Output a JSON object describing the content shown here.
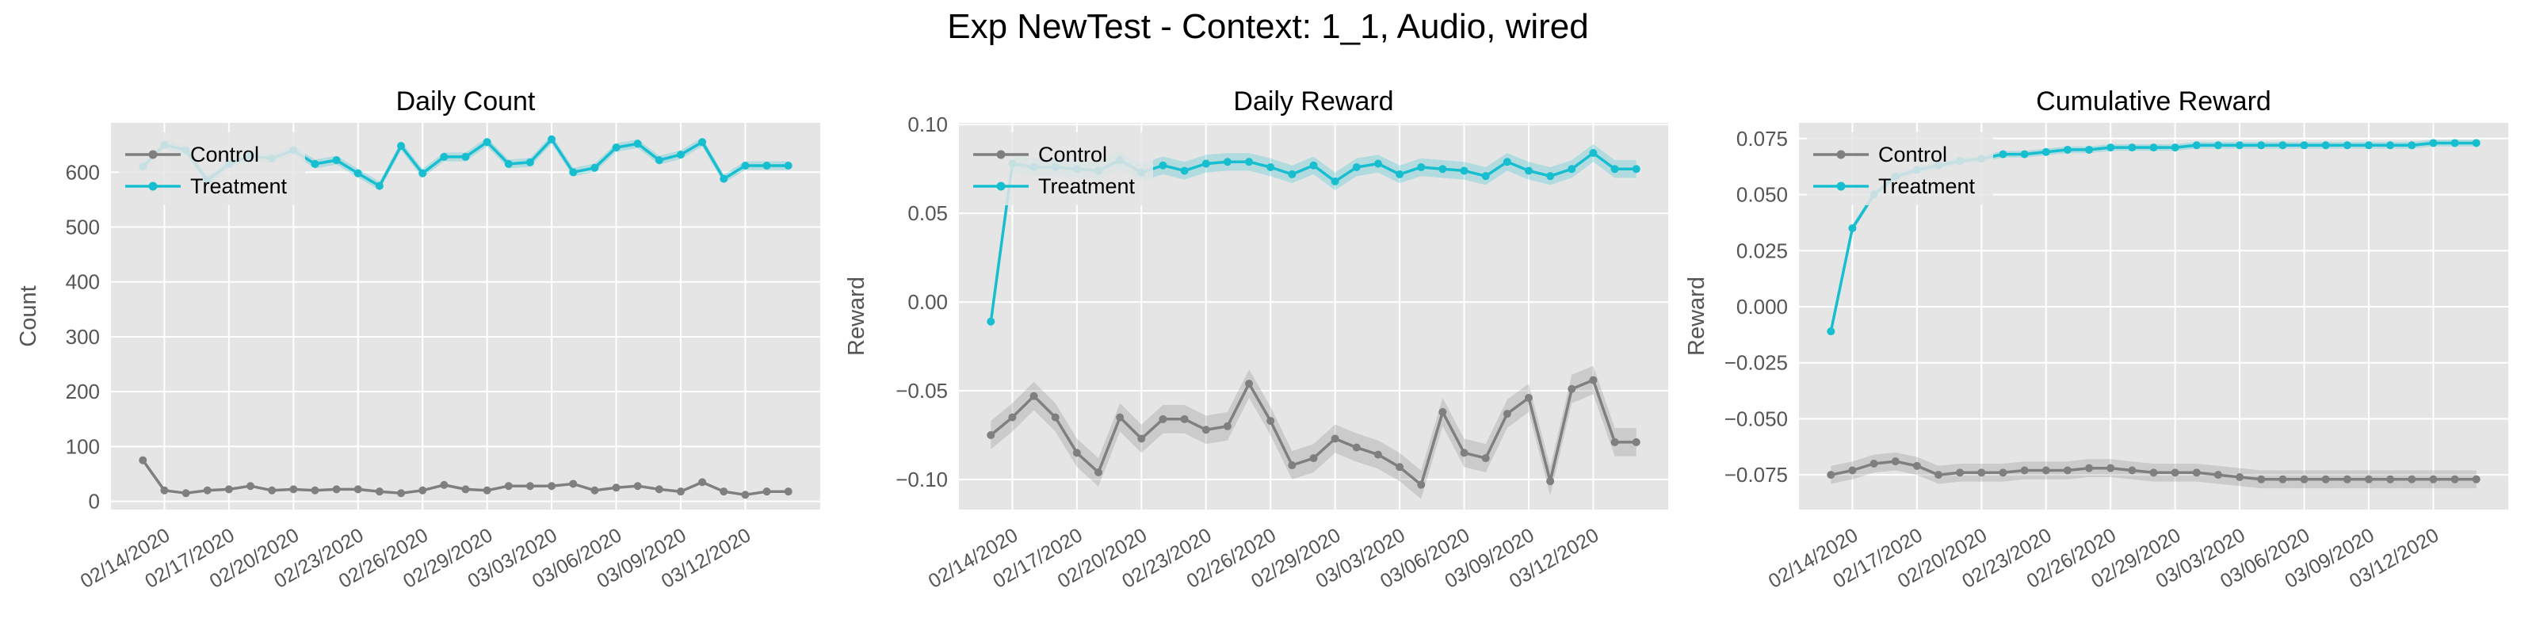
{
  "figure": {
    "suptitle": "Exp NewTest - Context: 1_1, Audio, wired"
  },
  "colors": {
    "control": "#7f7f7f",
    "treatment": "#17becf",
    "panel_bg": "#e5e5e5",
    "grid": "#ffffff"
  },
  "chart_data": [
    {
      "type": "line",
      "title": "Daily Count",
      "xlabel": "",
      "ylabel": "Count",
      "ylim": [
        -15,
        690
      ],
      "yticks": [
        0,
        100,
        200,
        300,
        400,
        500,
        600
      ],
      "ytick_labels": [
        "0",
        "100",
        "200",
        "300",
        "400",
        "500",
        "600"
      ],
      "x": [
        "02/13/2020",
        "02/14/2020",
        "02/15/2020",
        "02/16/2020",
        "02/17/2020",
        "02/18/2020",
        "02/19/2020",
        "02/20/2020",
        "02/21/2020",
        "02/22/2020",
        "02/23/2020",
        "02/24/2020",
        "02/25/2020",
        "02/26/2020",
        "02/27/2020",
        "02/28/2020",
        "02/29/2020",
        "03/01/2020",
        "03/02/2020",
        "03/03/2020",
        "03/04/2020",
        "03/05/2020",
        "03/06/2020",
        "03/07/2020",
        "03/08/2020",
        "03/09/2020",
        "03/10/2020",
        "03/11/2020",
        "03/12/2020",
        "03/13/2020",
        "03/14/2020"
      ],
      "xticks": [
        "02/14/2020",
        "02/17/2020",
        "02/20/2020",
        "02/23/2020",
        "02/26/2020",
        "02/29/2020",
        "03/03/2020",
        "03/06/2020",
        "03/09/2020",
        "03/12/2020"
      ],
      "legend": {
        "placement": "upper-left"
      },
      "series": [
        {
          "name": "Control",
          "values": [
            75,
            20,
            15,
            20,
            22,
            28,
            20,
            22,
            20,
            22,
            22,
            18,
            15,
            20,
            30,
            22,
            20,
            28,
            28,
            28,
            32,
            20,
            25,
            28,
            22,
            18,
            35,
            18,
            12,
            18,
            18
          ],
          "band": 0
        },
        {
          "name": "Treatment",
          "values": [
            610,
            650,
            640,
            585,
            615,
            630,
            625,
            640,
            615,
            622,
            598,
            575,
            648,
            598,
            628,
            628,
            655,
            615,
            618,
            660,
            600,
            608,
            645,
            652,
            622,
            632,
            655,
            588,
            612,
            612,
            612
          ],
          "band": 8
        }
      ]
    },
    {
      "type": "line",
      "title": "Daily Reward",
      "xlabel": "",
      "ylabel": "Reward",
      "ylim": [
        -0.117,
        0.101
      ],
      "yticks": [
        -0.1,
        -0.05,
        0.0,
        0.05,
        0.1
      ],
      "ytick_labels": [
        "−0.10",
        "−0.05",
        "0.00",
        "0.05",
        "0.10"
      ],
      "x": [
        "02/13/2020",
        "02/14/2020",
        "02/15/2020",
        "02/16/2020",
        "02/17/2020",
        "02/18/2020",
        "02/19/2020",
        "02/20/2020",
        "02/21/2020",
        "02/22/2020",
        "02/23/2020",
        "02/24/2020",
        "02/25/2020",
        "02/26/2020",
        "02/27/2020",
        "02/28/2020",
        "02/29/2020",
        "03/01/2020",
        "03/02/2020",
        "03/03/2020",
        "03/04/2020",
        "03/05/2020",
        "03/06/2020",
        "03/07/2020",
        "03/08/2020",
        "03/09/2020",
        "03/10/2020",
        "03/11/2020",
        "03/12/2020",
        "03/13/2020",
        "03/14/2020"
      ],
      "xticks": [
        "02/14/2020",
        "02/17/2020",
        "02/20/2020",
        "02/23/2020",
        "02/26/2020",
        "02/29/2020",
        "03/03/2020",
        "03/06/2020",
        "03/09/2020",
        "03/12/2020"
      ],
      "legend": {
        "placement": "upper-left"
      },
      "series": [
        {
          "name": "Control",
          "values": [
            -0.075,
            -0.065,
            -0.053,
            -0.065,
            -0.085,
            -0.096,
            -0.065,
            -0.077,
            -0.066,
            -0.066,
            -0.072,
            -0.07,
            -0.046,
            -0.067,
            -0.092,
            -0.088,
            -0.077,
            -0.082,
            -0.086,
            -0.093,
            -0.103,
            -0.062,
            -0.085,
            -0.088,
            -0.063,
            -0.054,
            -0.101,
            -0.049,
            -0.044,
            -0.079,
            -0.079
          ],
          "band": 0.008
        },
        {
          "name": "Treatment",
          "values": [
            -0.011,
            0.078,
            0.076,
            0.076,
            0.075,
            0.074,
            0.08,
            0.073,
            0.077,
            0.074,
            0.078,
            0.079,
            0.079,
            0.076,
            0.072,
            0.077,
            0.068,
            0.076,
            0.078,
            0.072,
            0.076,
            0.075,
            0.074,
            0.071,
            0.079,
            0.074,
            0.071,
            0.075,
            0.084,
            0.075,
            0.075
          ],
          "band": 0.005
        }
      ]
    },
    {
      "type": "line",
      "title": "Cumulative Reward",
      "xlabel": "",
      "ylabel": "Reward",
      "ylim": [
        -0.0905,
        0.082
      ],
      "yticks": [
        -0.075,
        -0.05,
        -0.025,
        0.0,
        0.025,
        0.05,
        0.075
      ],
      "ytick_labels": [
        "−0.075",
        "−0.050",
        "−0.025",
        "0.000",
        "0.025",
        "0.050",
        "0.075"
      ],
      "x": [
        "02/13/2020",
        "02/14/2020",
        "02/15/2020",
        "02/16/2020",
        "02/17/2020",
        "02/18/2020",
        "02/19/2020",
        "02/20/2020",
        "02/21/2020",
        "02/22/2020",
        "02/23/2020",
        "02/24/2020",
        "02/25/2020",
        "02/26/2020",
        "02/27/2020",
        "02/28/2020",
        "02/29/2020",
        "03/01/2020",
        "03/02/2020",
        "03/03/2020",
        "03/04/2020",
        "03/05/2020",
        "03/06/2020",
        "03/07/2020",
        "03/08/2020",
        "03/09/2020",
        "03/10/2020",
        "03/11/2020",
        "03/12/2020",
        "03/13/2020",
        "03/14/2020"
      ],
      "xticks": [
        "02/14/2020",
        "02/17/2020",
        "02/20/2020",
        "02/23/2020",
        "02/26/2020",
        "02/29/2020",
        "03/03/2020",
        "03/06/2020",
        "03/09/2020",
        "03/12/2020"
      ],
      "legend": {
        "placement": "upper-left"
      },
      "series": [
        {
          "name": "Control",
          "values": [
            -0.075,
            -0.073,
            -0.07,
            -0.069,
            -0.071,
            -0.075,
            -0.074,
            -0.074,
            -0.074,
            -0.073,
            -0.073,
            -0.073,
            -0.072,
            -0.072,
            -0.073,
            -0.074,
            -0.074,
            -0.074,
            -0.075,
            -0.076,
            -0.077,
            -0.077,
            -0.077,
            -0.077,
            -0.077,
            -0.077,
            -0.077,
            -0.077,
            -0.077,
            -0.077,
            -0.077
          ],
          "band": 0.004
        },
        {
          "name": "Treatment",
          "values": [
            -0.011,
            0.035,
            0.05,
            0.058,
            0.061,
            0.063,
            0.065,
            0.066,
            0.068,
            0.068,
            0.069,
            0.07,
            0.07,
            0.071,
            0.071,
            0.071,
            0.071,
            0.072,
            0.072,
            0.072,
            0.072,
            0.072,
            0.072,
            0.072,
            0.072,
            0.072,
            0.072,
            0.072,
            0.073,
            0.073,
            0.073
          ],
          "band": 0.0015
        }
      ]
    }
  ]
}
